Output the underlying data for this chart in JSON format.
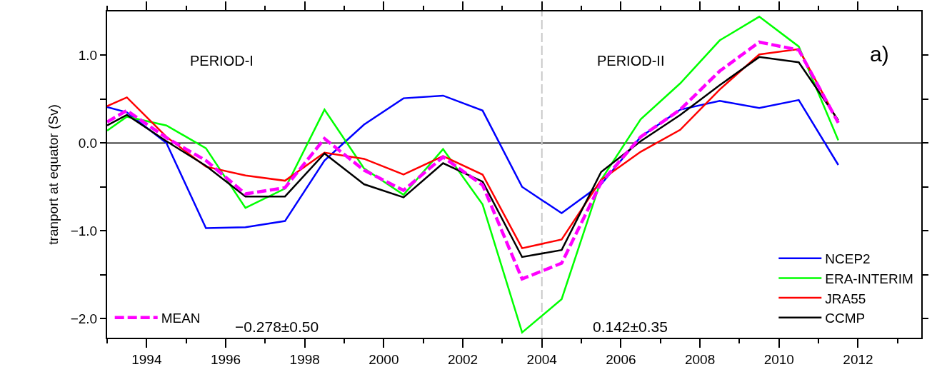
{
  "chart_data": {
    "type": "line",
    "ylabel": "tranport at equator (Sv)",
    "x": [
      1993,
      1993.5,
      1994.5,
      1995.5,
      1996.5,
      1997.5,
      1998.5,
      1999.5,
      2000.5,
      2001.5,
      2002.5,
      2003.5,
      2004.5,
      2005.5,
      2006.5,
      2007.5,
      2008.5,
      2009.5,
      2010.5,
      2011.5
    ],
    "series": [
      {
        "name": "NCEP2",
        "color": "#0000ff",
        "values": [
          0.41,
          0.35,
          0.0,
          -0.97,
          -0.96,
          -0.89,
          -0.2,
          0.21,
          0.51,
          0.54,
          0.37,
          -0.5,
          -0.8,
          -0.47,
          0.07,
          0.38,
          0.48,
          0.4,
          0.49,
          -0.25
        ]
      },
      {
        "name": "ERA-INTERIM",
        "color": "#00ff00",
        "values": [
          0.14,
          0.3,
          0.2,
          -0.06,
          -0.74,
          -0.52,
          0.38,
          -0.29,
          -0.59,
          -0.07,
          -0.7,
          -2.16,
          -1.78,
          -0.42,
          0.27,
          0.68,
          1.17,
          1.44,
          1.1,
          0.03
        ]
      },
      {
        "name": "JRA55",
        "color": "#ff0000",
        "values": [
          0.42,
          0.52,
          0.07,
          -0.27,
          -0.37,
          -0.43,
          -0.11,
          -0.18,
          -0.36,
          -0.15,
          -0.36,
          -1.2,
          -1.1,
          -0.42,
          -0.1,
          0.15,
          0.61,
          1.01,
          1.07,
          0.24
        ]
      },
      {
        "name": "CCMP",
        "color": "#000000",
        "values": [
          0.2,
          0.32,
          0.02,
          -0.26,
          -0.61,
          -0.61,
          -0.12,
          -0.47,
          -0.62,
          -0.23,
          -0.44,
          -1.3,
          -1.22,
          -0.33,
          0.02,
          0.32,
          0.66,
          0.98,
          0.92,
          0.26
        ]
      },
      {
        "name": "MEAN",
        "color": "#ff00ff",
        "line_style": "dashed",
        "values": [
          0.24,
          0.37,
          0.06,
          -0.2,
          -0.58,
          -0.51,
          0.05,
          -0.31,
          -0.54,
          -0.16,
          -0.48,
          -1.55,
          -1.37,
          -0.45,
          0.07,
          0.38,
          0.82,
          1.15,
          1.06,
          0.23
        ]
      }
    ],
    "xlim": [
      1993,
      2013.6
    ],
    "xticks": [
      1994,
      1996,
      1998,
      2000,
      2002,
      2004,
      2006,
      2008,
      2010,
      2012
    ],
    "ylim": [
      -2.22,
      1.5
    ],
    "yticks": [
      {
        "value": -2,
        "label": "−2.0"
      },
      {
        "value": -1.5,
        "label": null
      },
      {
        "value": -1,
        "label": "−1.0"
      },
      {
        "value": -0.5,
        "label": null
      },
      {
        "value": 0,
        "label": "0.0"
      },
      {
        "value": 0.5,
        "label": null
      },
      {
        "value": 1,
        "label": "1.0"
      }
    ],
    "ref_lines": [
      {
        "axis": "y",
        "value": 0,
        "color": "#000000"
      },
      {
        "axis": "x",
        "value": 2004,
        "color": "#c8c8c8",
        "line_style": "dashed"
      }
    ],
    "annotations": [
      "PERIOD-I",
      "PERIOD-II",
      "a)",
      "−0.278±0.50",
      "0.142±0.35"
    ],
    "legend": "bottom right",
    "grid": false,
    "line_style": "solid",
    "marker": "none"
  }
}
